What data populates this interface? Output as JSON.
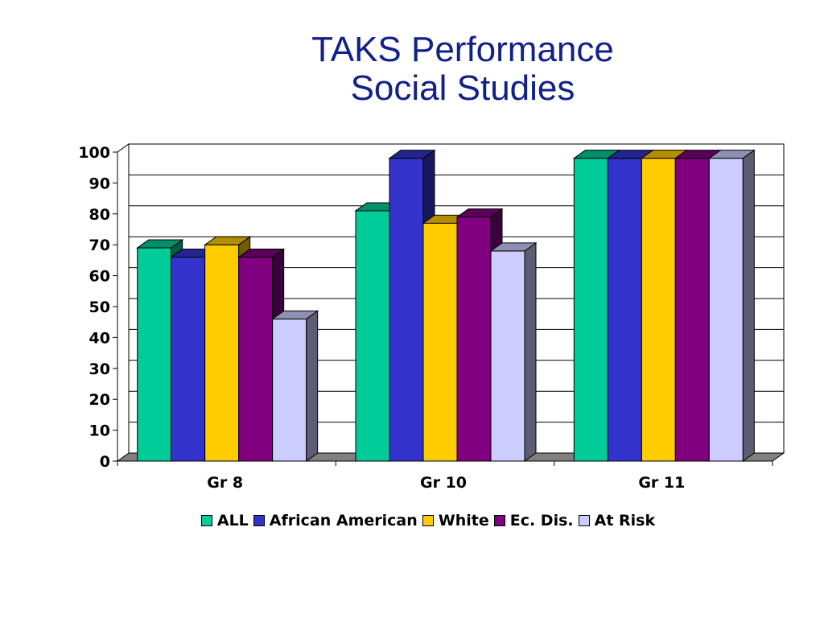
{
  "slide": {
    "title_line1": "TAKS Performance",
    "title_line2": "Social Studies"
  },
  "chart_data": {
    "type": "bar",
    "title": "TAKS Performance Social Studies",
    "categories": [
      "Gr 8",
      "Gr 10",
      "Gr 11"
    ],
    "series": [
      {
        "name": "ALL",
        "values": [
          69,
          81,
          98
        ],
        "color": "#00cc99"
      },
      {
        "name": "African American",
        "values": [
          66,
          98,
          98
        ],
        "color": "#3333cc"
      },
      {
        "name": "White",
        "values": [
          70,
          77,
          98
        ],
        "color": "#ffcc00"
      },
      {
        "name": "Ec. Dis.",
        "values": [
          66,
          79,
          98
        ],
        "color": "#800080"
      },
      {
        "name": "At Risk",
        "values": [
          46,
          68,
          98
        ],
        "color": "#ccccff"
      }
    ],
    "ylim": [
      0,
      100
    ],
    "yticks": [
      0,
      10,
      20,
      30,
      40,
      50,
      60,
      70,
      80,
      90,
      100
    ],
    "grid": true,
    "legend": "bottom",
    "three_d": true
  }
}
